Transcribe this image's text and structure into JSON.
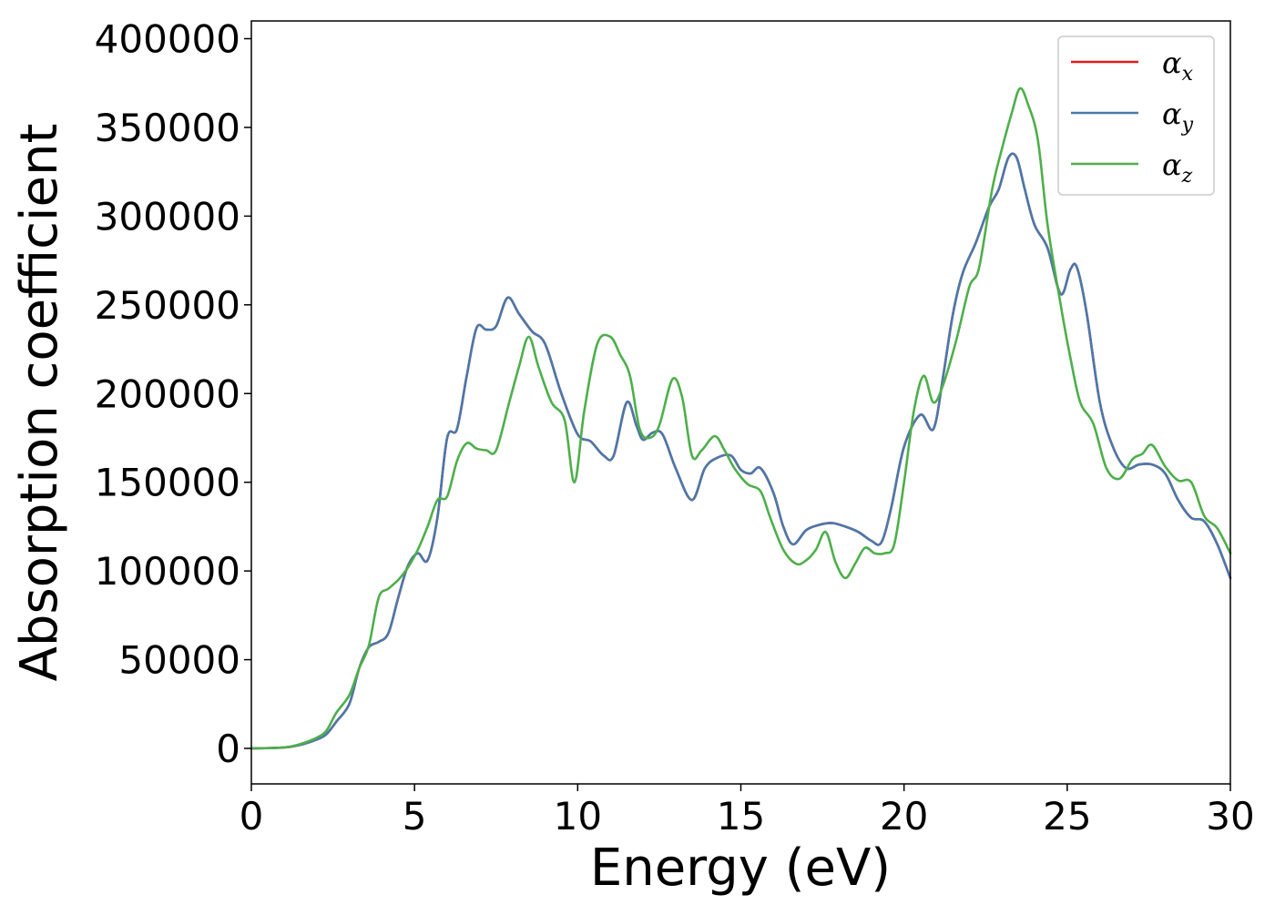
{
  "chart_data": {
    "type": "line",
    "xlabel": "Energy (eV)",
    "ylabel": "Absorption coefficient",
    "xlim": [
      0,
      30
    ],
    "ylim": [
      -20000,
      410000
    ],
    "xticks": [
      0,
      5,
      10,
      15,
      20,
      25,
      30
    ],
    "xtick_labels": [
      "0",
      "5",
      "10",
      "15",
      "20",
      "25",
      "30"
    ],
    "yticks": [
      0,
      50000,
      100000,
      150000,
      200000,
      250000,
      300000,
      350000,
      400000
    ],
    "ytick_labels": [
      "0",
      "50000",
      "100000",
      "150000",
      "200000",
      "250000",
      "300000",
      "350000",
      "400000"
    ],
    "grid": false,
    "legend_position": "top-right",
    "series": [
      {
        "name": "αx",
        "name_main": "α",
        "name_sub": "x",
        "color": "#e41a1c",
        "x": [
          0,
          1,
          1.5,
          2,
          2.3,
          2.6,
          3,
          3.3,
          3.6,
          3.9,
          4.2,
          4.5,
          4.8,
          5.1,
          5.4,
          5.7,
          6.0,
          6.3,
          6.6,
          6.9,
          7.2,
          7.5,
          7.85,
          8.2,
          8.6,
          9.0,
          9.5,
          10.0,
          10.4,
          10.8,
          11.1,
          11.5,
          11.8,
          12.0,
          12.3,
          12.6,
          13.0,
          13.5,
          13.9,
          14.3,
          14.7,
          15.0,
          15.3,
          15.6,
          16.0,
          16.3,
          16.6,
          17.0,
          17.4,
          17.8,
          18.2,
          18.6,
          19.0,
          19.3,
          19.6,
          20.0,
          20.5,
          20.9,
          21.2,
          21.5,
          21.8,
          22.2,
          22.6,
          22.9,
          23.2,
          23.45,
          23.7,
          24.0,
          24.4,
          24.8,
          25.1,
          25.3,
          25.6,
          26.0,
          26.4,
          26.8,
          27.2,
          27.6,
          28.0,
          28.4,
          28.8,
          29.2,
          29.6,
          30.0
        ],
        "values": [
          0,
          500,
          2000,
          5000,
          8000,
          15000,
          25000,
          45000,
          57000,
          60000,
          65000,
          85000,
          103000,
          110000,
          106000,
          130000,
          175000,
          180000,
          210000,
          237000,
          236000,
          238000,
          254000,
          245000,
          235000,
          228000,
          200000,
          177000,
          173000,
          165000,
          165000,
          195000,
          182000,
          174000,
          178000,
          177000,
          158000,
          140000,
          158000,
          164000,
          165000,
          157000,
          155000,
          158000,
          144000,
          125000,
          115000,
          123000,
          126000,
          127000,
          125000,
          122000,
          117000,
          116000,
          135000,
          170000,
          188000,
          180000,
          210000,
          245000,
          268000,
          285000,
          305000,
          315000,
          333000,
          333000,
          315000,
          295000,
          282000,
          256000,
          270000,
          271000,
          245000,
          195000,
          170000,
          158000,
          160000,
          160000,
          155000,
          140000,
          130000,
          128000,
          115000,
          96000
        ]
      },
      {
        "name": "αy",
        "name_main": "α",
        "name_sub": "y",
        "color": "#4a79aa",
        "x": [
          0,
          1,
          1.5,
          2,
          2.3,
          2.6,
          3,
          3.3,
          3.6,
          3.9,
          4.2,
          4.5,
          4.8,
          5.1,
          5.4,
          5.7,
          6.0,
          6.3,
          6.6,
          6.9,
          7.2,
          7.5,
          7.85,
          8.2,
          8.6,
          9.0,
          9.5,
          10.0,
          10.4,
          10.8,
          11.1,
          11.5,
          11.8,
          12.0,
          12.3,
          12.6,
          13.0,
          13.5,
          13.9,
          14.3,
          14.7,
          15.0,
          15.3,
          15.6,
          16.0,
          16.3,
          16.6,
          17.0,
          17.4,
          17.8,
          18.2,
          18.6,
          19.0,
          19.3,
          19.6,
          20.0,
          20.5,
          20.9,
          21.2,
          21.5,
          21.8,
          22.2,
          22.6,
          22.9,
          23.2,
          23.45,
          23.7,
          24.0,
          24.4,
          24.8,
          25.1,
          25.3,
          25.6,
          26.0,
          26.4,
          26.8,
          27.2,
          27.6,
          28.0,
          28.4,
          28.8,
          29.2,
          29.6,
          30.0
        ],
        "values": [
          0,
          500,
          2000,
          5000,
          8000,
          15000,
          25000,
          45000,
          57000,
          60000,
          65000,
          85000,
          103000,
          110000,
          106000,
          130000,
          175000,
          180000,
          210000,
          237000,
          236000,
          238000,
          254000,
          245000,
          235000,
          228000,
          200000,
          177000,
          173000,
          165000,
          165000,
          195000,
          182000,
          174000,
          178000,
          177000,
          158000,
          140000,
          158000,
          164000,
          165000,
          157000,
          155000,
          158000,
          144000,
          125000,
          115000,
          123000,
          126000,
          127000,
          125000,
          122000,
          117000,
          116000,
          135000,
          170000,
          188000,
          180000,
          210000,
          245000,
          268000,
          285000,
          305000,
          315000,
          333000,
          333000,
          315000,
          295000,
          282000,
          256000,
          270000,
          271000,
          245000,
          195000,
          170000,
          158000,
          160000,
          160000,
          155000,
          140000,
          130000,
          128000,
          115000,
          96000
        ]
      },
      {
        "name": "αz",
        "name_main": "α",
        "name_sub": "z",
        "color": "#4daf4a",
        "x": [
          0,
          1,
          1.5,
          2,
          2.3,
          2.6,
          3,
          3.3,
          3.6,
          3.9,
          4.2,
          4.5,
          4.8,
          5.1,
          5.4,
          5.7,
          6.0,
          6.3,
          6.6,
          6.9,
          7.2,
          7.5,
          7.9,
          8.2,
          8.5,
          8.8,
          9.2,
          9.6,
          9.9,
          10.2,
          10.6,
          11.0,
          11.3,
          11.6,
          11.9,
          12.2,
          12.5,
          12.9,
          13.2,
          13.5,
          13.8,
          14.2,
          14.5,
          14.8,
          15.2,
          15.6,
          15.9,
          16.3,
          16.7,
          17.0,
          17.3,
          17.6,
          17.9,
          18.2,
          18.5,
          18.8,
          19.1,
          19.4,
          19.7,
          20.0,
          20.3,
          20.6,
          20.9,
          21.2,
          21.6,
          22.0,
          22.3,
          22.7,
          23.0,
          23.3,
          23.55,
          23.8,
          24.1,
          24.4,
          24.8,
          25.1,
          25.4,
          25.8,
          26.2,
          26.6,
          27.0,
          27.3,
          27.6,
          28.0,
          28.4,
          28.8,
          29.2,
          29.6,
          30.0
        ],
        "values": [
          0,
          500,
          2500,
          6000,
          10000,
          20000,
          30000,
          45000,
          58000,
          85000,
          90000,
          95000,
          102000,
          112000,
          125000,
          140000,
          142000,
          162000,
          172000,
          169000,
          168000,
          168000,
          195000,
          215000,
          232000,
          215000,
          195000,
          185000,
          150000,
          190000,
          228000,
          232000,
          222000,
          210000,
          180000,
          175000,
          182000,
          208000,
          198000,
          165000,
          168000,
          176000,
          168000,
          158000,
          149000,
          145000,
          130000,
          112000,
          104000,
          106000,
          112000,
          122000,
          105000,
          96000,
          104000,
          113000,
          110000,
          110000,
          115000,
          150000,
          190000,
          210000,
          195000,
          205000,
          230000,
          260000,
          271000,
          315000,
          338000,
          358000,
          372000,
          363000,
          343000,
          295000,
          250000,
          220000,
          195000,
          183000,
          158000,
          152000,
          163000,
          166000,
          171000,
          159000,
          151000,
          150000,
          131000,
          124000,
          110000
        ]
      }
    ]
  }
}
